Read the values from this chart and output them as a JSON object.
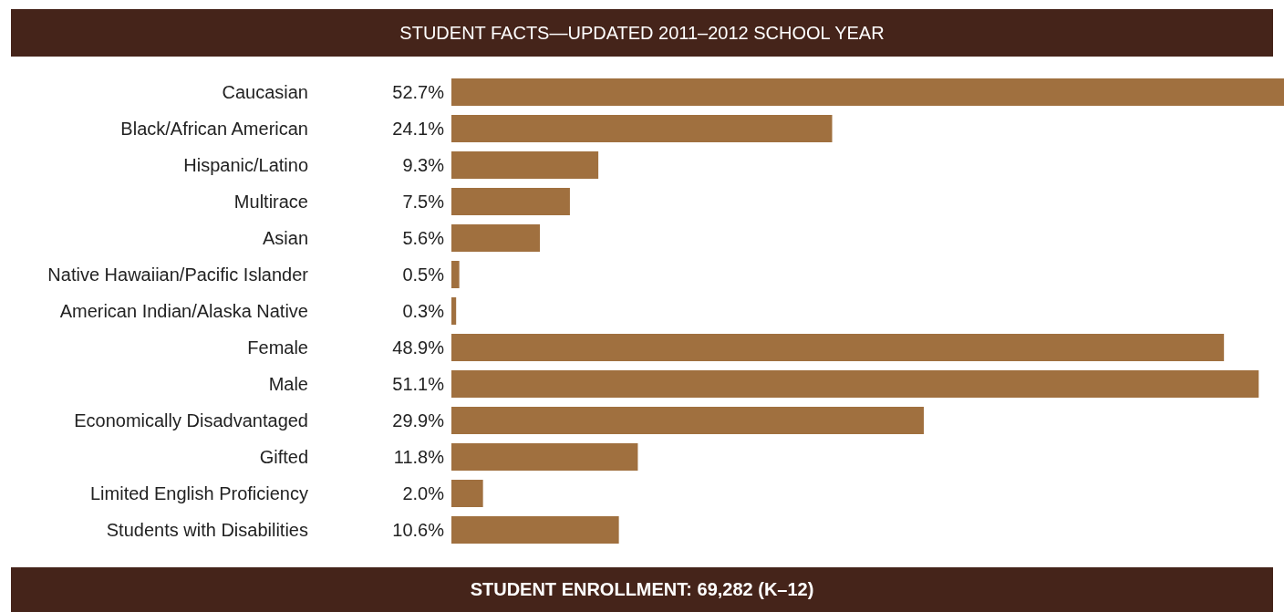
{
  "chart_data": {
    "type": "bar",
    "orientation": "horizontal",
    "title": "STUDENT FACTS—UPDATED 2011–2012 SCHOOL YEAR",
    "categories": [
      "Caucasian",
      "Black/African American",
      "Hispanic/Latino",
      "Multirace",
      "Asian",
      "Native Hawaiian/Pacific Islander",
      "American Indian/Alaska Native",
      "Female",
      "Male",
      "Economically Disadvantaged",
      "Gifted",
      "Limited English Proficiency",
      "Students with Disabilities"
    ],
    "values": [
      52.7,
      24.1,
      9.3,
      7.5,
      5.6,
      0.5,
      0.3,
      48.9,
      51.1,
      29.9,
      11.8,
      2.0,
      10.6
    ],
    "value_labels": [
      "52.7%",
      "24.1%",
      "9.3%",
      "7.5%",
      "5.6%",
      "0.5%",
      "0.3%",
      "48.9%",
      "51.1%",
      "29.9%",
      "11.8%",
      "2.0%",
      "10.6%"
    ],
    "color": "#a0703f",
    "annotations": [
      "STUDENT ENROLLMENT: 69,282 (K–12)"
    ]
  }
}
